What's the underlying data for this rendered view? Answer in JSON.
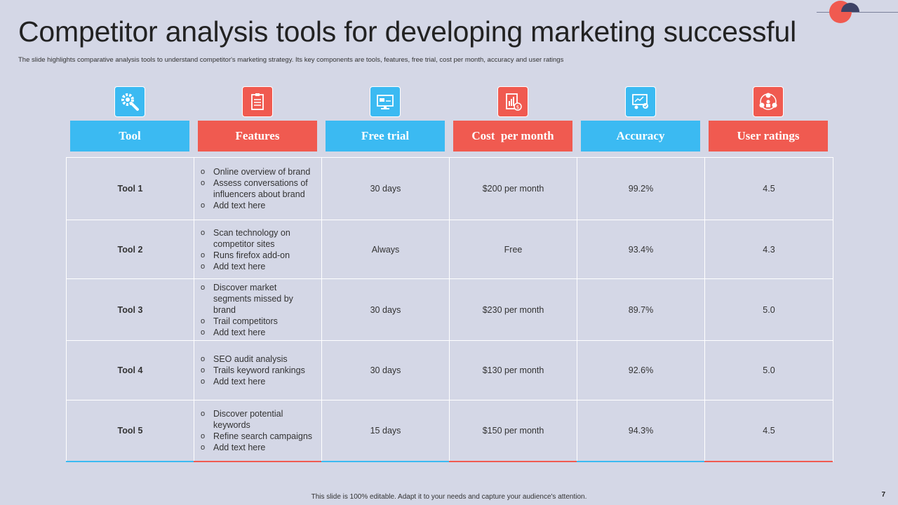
{
  "title": "Competitor analysis tools for developing marketing successful",
  "subtitle": "The slide highlights comparative analysis tools to understand competitor's marketing strategy. Its key components are tools, features, free trial, cost per month, accuracy and user ratings",
  "headers": [
    "Tool",
    "Features",
    "Free trial",
    "Cost  per month",
    "Accuracy",
    "User ratings"
  ],
  "icons": [
    "gear-wrench-icon",
    "checklist-icon",
    "trial-monitor-icon",
    "cost-report-icon",
    "accuracy-presentation-icon",
    "user-network-icon"
  ],
  "colors": {
    "blue": "#3BBAF2",
    "red": "#F05A50",
    "background": "#D4D7E6"
  },
  "rows": [
    {
      "tool": "Tool 1",
      "features": [
        "Online overview  of brand",
        "Assess conversations of influencers about brand",
        "Add text here"
      ],
      "trial": "30 days",
      "cost": "$200  per month",
      "accuracy": "99.2%",
      "rating": "4.5"
    },
    {
      "tool": "Tool 2",
      "features": [
        "Scan technology on competitor sites",
        "Runs firefox add-on",
        "Add text here"
      ],
      "trial": "Always",
      "cost": "Free",
      "accuracy": "93.4%",
      "rating": "4.3"
    },
    {
      "tool": "Tool 3",
      "features": [
        "Discover market segments missed by brand",
        "Trail  competitors",
        "Add text here"
      ],
      "trial": "30 days",
      "cost": "$230  per month",
      "accuracy": "89.7%",
      "rating": "5.0"
    },
    {
      "tool": "Tool 4",
      "features": [
        "SEO audit analysis",
        "Trails keyword rankings",
        "Add text here"
      ],
      "trial": "30 days",
      "cost": "$130  per month",
      "accuracy": "92.6%",
      "rating": "5.0"
    },
    {
      "tool": "Tool 5",
      "features": [
        "Discover potential keywords",
        "Refine search campaigns",
        "Add text here"
      ],
      "trial": "15 days",
      "cost": "$150  per month",
      "accuracy": "94.3%",
      "rating": "4.5"
    }
  ],
  "footer": "This slide is 100% editable. Adapt it to your needs and capture your audience's attention.",
  "page_number": "7"
}
